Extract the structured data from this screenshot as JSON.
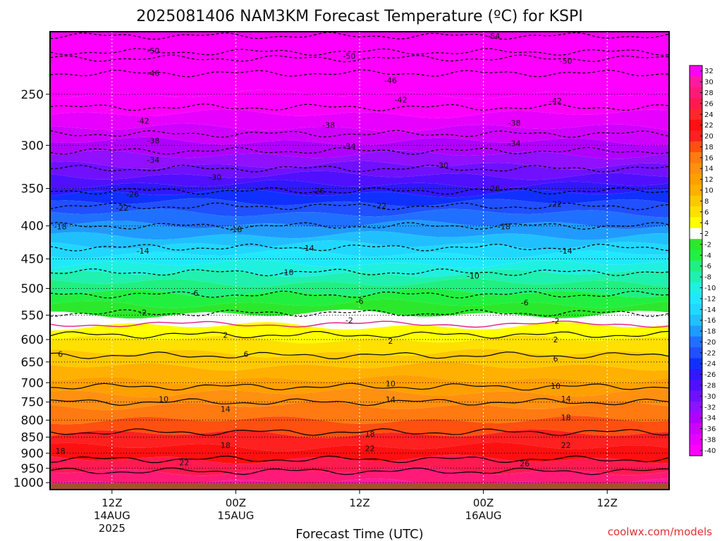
{
  "chart_data": {
    "type": "heatmap",
    "title": "2025081406 NAM3KM Forecast Temperature (ºC) for KSPI",
    "xlabel": "Forecast Time (UTC)",
    "ylabel": "",
    "credit": "coolwx.com/models",
    "x_axis": {
      "ticks": [
        {
          "label": "12Z",
          "sub1": "14AUG",
          "sub2": "2025",
          "hour": 6
        },
        {
          "label": "00Z",
          "sub1": "15AUG",
          "sub2": "",
          "hour": 18
        },
        {
          "label": "12Z",
          "sub1": "",
          "sub2": "",
          "hour": 30
        },
        {
          "label": "00Z",
          "sub1": "16AUG",
          "sub2": "",
          "hour": 42
        },
        {
          "label": "12Z",
          "sub1": "",
          "sub2": "",
          "hour": 54
        }
      ],
      "range_hours": [
        0,
        60
      ]
    },
    "y_axis": {
      "scale": "pressure",
      "ticks": [
        250,
        300,
        350,
        400,
        450,
        500,
        550,
        600,
        650,
        700,
        750,
        800,
        850,
        900,
        950,
        1000
      ],
      "range_hpa": [
        200,
        1025
      ],
      "grid": "dotted"
    },
    "colorbar": {
      "labels": [
        "32",
        "30",
        "28",
        "26",
        "24",
        "22",
        "20",
        "18",
        "16",
        "14",
        "12",
        "10",
        "8",
        "6",
        "4",
        "2",
        "-2",
        "-4",
        "-6",
        "-8",
        "-10",
        "-12",
        "-14",
        "-16",
        "-18",
        "-20",
        "-22",
        "-24",
        "-26",
        "-28",
        "-30",
        "-32",
        "-34",
        "-36",
        "-38",
        "-40"
      ],
      "colors": [
        "#ff00ff",
        "#ff1aa0",
        "#ff1a78",
        "#ff1a50",
        "#ff2828",
        "#ff1010",
        "#ff2020",
        "#ff5010",
        "#ff7a10",
        "#ff9010",
        "#ffa000",
        "#ffb000",
        "#ffc800",
        "#ffe000",
        "#ffff00",
        "#ffffff",
        "#2ce82c",
        "#22f040",
        "#20f080",
        "#20f0b0",
        "#20f0e0",
        "#20e8ff",
        "#20d8ff",
        "#20c0ff",
        "#209aff",
        "#2070ff",
        "#2050ff",
        "#1030ff",
        "#3018ff",
        "#5010ff",
        "#7010ff",
        "#9010ff",
        "#b000ff",
        "#d000ff",
        "#e800ff",
        "#ff00ff"
      ]
    },
    "surface_pressure_hpa": 1000,
    "surface_color": "#a0522d",
    "isotherms": [
      {
        "value": "-50",
        "p": 215,
        "labels": [
          [
            10,
            214
          ],
          [
            29,
            218
          ]
        ],
        "color": "#000",
        "dash": true
      },
      {
        "value": "-54",
        "p": 203,
        "labels": [
          [
            43,
            203
          ]
        ],
        "color": "#000",
        "dash": true
      },
      {
        "value": "-50",
        "p": 220,
        "labels": [
          [
            50,
            222
          ]
        ],
        "color": "#000",
        "dash": true
      },
      {
        "value": "-46",
        "p": 232,
        "labels": [
          [
            10,
            232
          ],
          [
            33,
            238
          ]
        ],
        "color": "#000",
        "dash": true
      },
      {
        "value": "-42",
        "p": 262,
        "labels": [
          [
            9,
            275
          ],
          [
            34,
            255
          ],
          [
            49,
            256
          ]
        ],
        "color": "#000",
        "dash": true
      },
      {
        "value": "-38",
        "p": 288,
        "labels": [
          [
            10,
            295
          ],
          [
            27,
            279
          ],
          [
            45,
            277
          ]
        ],
        "color": "#000",
        "dash": true
      },
      {
        "value": "-34",
        "p": 306,
        "labels": [
          [
            10,
            316
          ],
          [
            29,
            301
          ],
          [
            45,
            298
          ]
        ],
        "color": "#000",
        "dash": true
      },
      {
        "value": "-30",
        "p": 326,
        "labels": [
          [
            16,
            336
          ],
          [
            38,
            322
          ]
        ],
        "color": "#000",
        "dash": true
      },
      {
        "value": "-26",
        "p": 353,
        "labels": [
          [
            8,
            357
          ],
          [
            26,
            353
          ],
          [
            43,
            350
          ]
        ],
        "color": "#000",
        "dash": true
      },
      {
        "value": "-22",
        "p": 373,
        "labels": [
          [
            7,
            375
          ],
          [
            32,
            372
          ],
          [
            49,
            370
          ]
        ],
        "color": "#000",
        "dash": true
      },
      {
        "value": "-18",
        "p": 400,
        "labels": [
          [
            1,
            401
          ],
          [
            18,
            405
          ],
          [
            44,
            401
          ]
        ],
        "color": "#000",
        "dash": true
      },
      {
        "value": "-14",
        "p": 432,
        "labels": [
          [
            9,
            437
          ],
          [
            25,
            433
          ],
          [
            50,
            437
          ]
        ],
        "color": "#000",
        "dash": true
      },
      {
        "value": "-10",
        "p": 472,
        "labels": [
          [
            23,
            472
          ],
          [
            41,
            478
          ]
        ],
        "color": "#000",
        "dash": true
      },
      {
        "value": "-6",
        "p": 511,
        "labels": [
          [
            14,
            508
          ],
          [
            30,
            523
          ],
          [
            46,
            526
          ]
        ],
        "color": "#000",
        "dash": true
      },
      {
        "value": "-2",
        "p": 546,
        "labels": [
          [
            9,
            545
          ],
          [
            29,
            560
          ],
          [
            49,
            561
          ]
        ],
        "color": "#000",
        "dash": true
      },
      {
        "value": "2",
        "p": 590,
        "labels": [
          [
            17,
            590
          ],
          [
            33,
            603
          ],
          [
            49,
            600
          ]
        ],
        "color": "#000",
        "dash": false
      },
      {
        "value": "6",
        "p": 635,
        "labels": [
          [
            1,
            632
          ],
          [
            19,
            632
          ],
          [
            49,
            642
          ]
        ],
        "color": "#000",
        "dash": false
      },
      {
        "value": "10",
        "p": 710,
        "labels": [
          [
            11,
            742
          ],
          [
            33,
            702
          ],
          [
            49,
            708
          ]
        ],
        "color": "#000",
        "dash": false
      },
      {
        "value": "14",
        "p": 750,
        "labels": [
          [
            17,
            769
          ],
          [
            33,
            743
          ],
          [
            50,
            741
          ]
        ],
        "color": "#000",
        "dash": false
      },
      {
        "value": "18",
        "p": 835,
        "labels": [
          [
            1,
            893
          ],
          [
            17,
            875
          ],
          [
            31,
            840
          ],
          [
            50,
            792
          ]
        ],
        "color": "#000",
        "dash": false
      },
      {
        "value": "22",
        "p": 920,
        "labels": [
          [
            13,
            930
          ],
          [
            31,
            885
          ],
          [
            50,
            875
          ]
        ],
        "color": "#000",
        "dash": false
      },
      {
        "value": "26",
        "p": 960,
        "labels": [
          [
            46,
            934
          ]
        ],
        "color": "#000",
        "dash": false
      }
    ]
  }
}
